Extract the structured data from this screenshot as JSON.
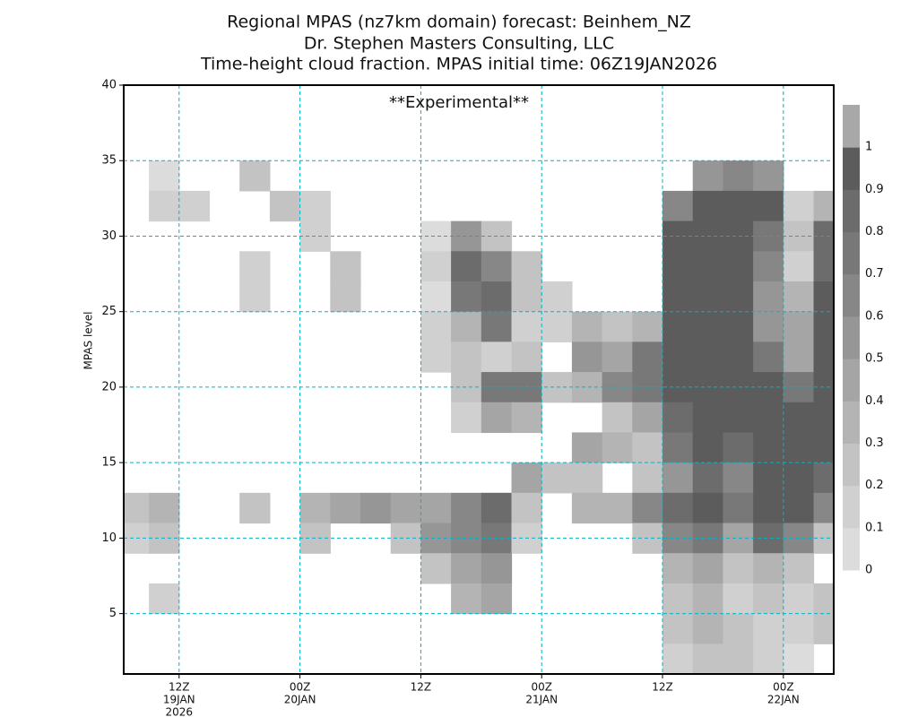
{
  "chart_data": {
    "type": "heatmap",
    "title": "Regional MPAS (nz7km domain) forecast: Beinhem_NZ",
    "subtitle": "Dr. Stephen Masters Consulting, LLC",
    "subtitle2": "Time-height cloud fraction.   MPAS initial time: 06Z19JAN2026",
    "annotation": "**Experimental**",
    "ylabel": "MPAS level",
    "xlim": [
      0.5,
      71
    ],
    "ylim": [
      1,
      40
    ],
    "xticks": [
      {
        "value": 6,
        "label": "12Z"
      },
      {
        "value": 18,
        "label": "00Z"
      },
      {
        "value": 30,
        "label": "12Z"
      },
      {
        "value": 42,
        "label": "00Z"
      },
      {
        "value": 54,
        "label": "12Z"
      },
      {
        "value": 66,
        "label": "00Z"
      }
    ],
    "date_labels": [
      {
        "value": 6,
        "label": "19JAN"
      },
      {
        "value": 18,
        "label": "20JAN"
      },
      {
        "value": 42,
        "label": "21JAN"
      },
      {
        "value": 66,
        "label": "22JAN"
      }
    ],
    "year_label": {
      "value": 6,
      "label": "2026"
    },
    "yticks": [
      5,
      10,
      15,
      20,
      25,
      30,
      35,
      40
    ],
    "grid": true,
    "grid_color": "#00b4c8",
    "levels": [
      0,
      0.1,
      0.2,
      0.3,
      0.4,
      0.5,
      0.6,
      0.7,
      0.8,
      0.9,
      1
    ],
    "colors": [
      "#dcdcdc",
      "#d0d0d0",
      "#c3c3c3",
      "#b4b4b4",
      "#a5a5a5",
      "#969696",
      "#878787",
      "#787878",
      "#6c6c6c",
      "#5c5c5c",
      "#a8a8a8"
    ],
    "x": [
      1.5,
      4.5,
      7.5,
      10.5,
      13.5,
      16.5,
      19.5,
      22.5,
      25.5,
      28.5,
      31.5,
      34.5,
      37.5,
      40.5,
      43.5,
      46.5,
      49.5,
      52.5,
      55.5,
      58.5,
      61.5,
      64.5,
      67.5,
      70.5
    ],
    "y": [
      38,
      36,
      34,
      32,
      30,
      28,
      26,
      24,
      22,
      20,
      18,
      16,
      14,
      12,
      10,
      8,
      6,
      4,
      2
    ],
    "z": [
      [
        0,
        0,
        0,
        0,
        0,
        0,
        0,
        0,
        0,
        0,
        0,
        0,
        0,
        0,
        0,
        0,
        0,
        0,
        0,
        0,
        0,
        0,
        0,
        0
      ],
      [
        0,
        0,
        0,
        0,
        0,
        0,
        0,
        0,
        0,
        0,
        0,
        0,
        0,
        0,
        0,
        0,
        0,
        0,
        0,
        0,
        0,
        0,
        0,
        0
      ],
      [
        0,
        0.05,
        0,
        0,
        0.2,
        0,
        0,
        0,
        0,
        0,
        0,
        0,
        0,
        0,
        0,
        0,
        0,
        0,
        0,
        0.5,
        0.6,
        0.5,
        0,
        0
      ],
      [
        0,
        0.1,
        0.1,
        0,
        0,
        0.2,
        0.1,
        0,
        0,
        0,
        0,
        0,
        0,
        0,
        0,
        0,
        0,
        0,
        0.6,
        0.9,
        0.9,
        0.9,
        0.1,
        0.3
      ],
      [
        0,
        0,
        0,
        0,
        0,
        0,
        0.1,
        0,
        0,
        0,
        0.05,
        0.5,
        0.2,
        0,
        0,
        0,
        0,
        0,
        0.9,
        0.9,
        0.9,
        0.7,
        0.2,
        0.8
      ],
      [
        0,
        0,
        0,
        0,
        0.1,
        0,
        0,
        0.2,
        0,
        0,
        0.1,
        0.8,
        0.6,
        0.2,
        0,
        0,
        0,
        0,
        0.9,
        0.9,
        0.9,
        0.6,
        0.1,
        0.8
      ],
      [
        0,
        0,
        0,
        0,
        0.1,
        0,
        0,
        0.2,
        0,
        0,
        0.05,
        0.7,
        0.8,
        0.2,
        0.1,
        0,
        0,
        0,
        0.9,
        0.9,
        0.9,
        0.5,
        0.3,
        0.9
      ],
      [
        0,
        0,
        0,
        0,
        0,
        0,
        0,
        0,
        0,
        0,
        0.1,
        0.3,
        0.7,
        0.1,
        0.1,
        0.3,
        0.2,
        0.3,
        0.9,
        0.9,
        0.9,
        0.5,
        0.4,
        0.9
      ],
      [
        0,
        0,
        0,
        0,
        0,
        0,
        0,
        0,
        0,
        0,
        0.1,
        0.2,
        0.1,
        0.2,
        0,
        0.5,
        0.4,
        0.7,
        0.9,
        0.9,
        0.9,
        0.7,
        0.4,
        0.9
      ],
      [
        0,
        0,
        0,
        0,
        0,
        0,
        0,
        0,
        0,
        0,
        0,
        0.2,
        0.7,
        0.7,
        0.2,
        0.3,
        0.6,
        0.7,
        0.9,
        0.9,
        0.9,
        0.9,
        0.7,
        0.9
      ],
      [
        0,
        0,
        0,
        0,
        0,
        0,
        0,
        0,
        0,
        0,
        0,
        0.1,
        0.4,
        0.3,
        0,
        0,
        0.2,
        0.4,
        0.8,
        0.9,
        0.9,
        0.9,
        0.9,
        0.9
      ],
      [
        0,
        0,
        0,
        0,
        0,
        0,
        0,
        0,
        0,
        0,
        0,
        0,
        0,
        0,
        0,
        0.4,
        0.3,
        0.2,
        0.7,
        0.9,
        0.8,
        0.9,
        0.9,
        0.9
      ],
      [
        0,
        0,
        0,
        0,
        0,
        0,
        0,
        0,
        0,
        0,
        0,
        0,
        0,
        0.4,
        0.2,
        0.2,
        0,
        0.2,
        0.5,
        0.8,
        0.6,
        0.9,
        0.9,
        0.8
      ],
      [
        0.2,
        0.3,
        0,
        0,
        0.2,
        0,
        0.3,
        0.4,
        0.5,
        0.4,
        0.4,
        0.6,
        0.8,
        0.2,
        0,
        0.3,
        0.3,
        0.6,
        0.8,
        0.9,
        0.7,
        0.9,
        0.9,
        0.6
      ],
      [
        0.1,
        0.2,
        0,
        0,
        0,
        0,
        0.2,
        0,
        0,
        0.2,
        0.5,
        0.6,
        0.7,
        0.1,
        0,
        0,
        0,
        0.2,
        0.6,
        0.7,
        0.4,
        0.8,
        0.6,
        0.2
      ],
      [
        0,
        0,
        0,
        0,
        0,
        0,
        0,
        0,
        0,
        0,
        0.2,
        0.4,
        0.5,
        0,
        0,
        0,
        0,
        0,
        0.3,
        0.4,
        0.2,
        0.3,
        0.2,
        0
      ],
      [
        0,
        0.1,
        0,
        0,
        0,
        0,
        0,
        0,
        0,
        0,
        0,
        0.3,
        0.4,
        0,
        0,
        0,
        0,
        0,
        0.2,
        0.3,
        0.1,
        0.2,
        0.1,
        0.2
      ],
      [
        0,
        0,
        0,
        0,
        0,
        0,
        0,
        0,
        0,
        0,
        0,
        0,
        0,
        0,
        0,
        0,
        0,
        0,
        0.2,
        0.3,
        0.2,
        0.1,
        0.1,
        0.2
      ],
      [
        0,
        0,
        0,
        0,
        0,
        0,
        0,
        0,
        0,
        0,
        0,
        0,
        0,
        0,
        0,
        0,
        0,
        0,
        0.1,
        0.2,
        0.2,
        0.1,
        0.05,
        0
      ]
    ]
  }
}
